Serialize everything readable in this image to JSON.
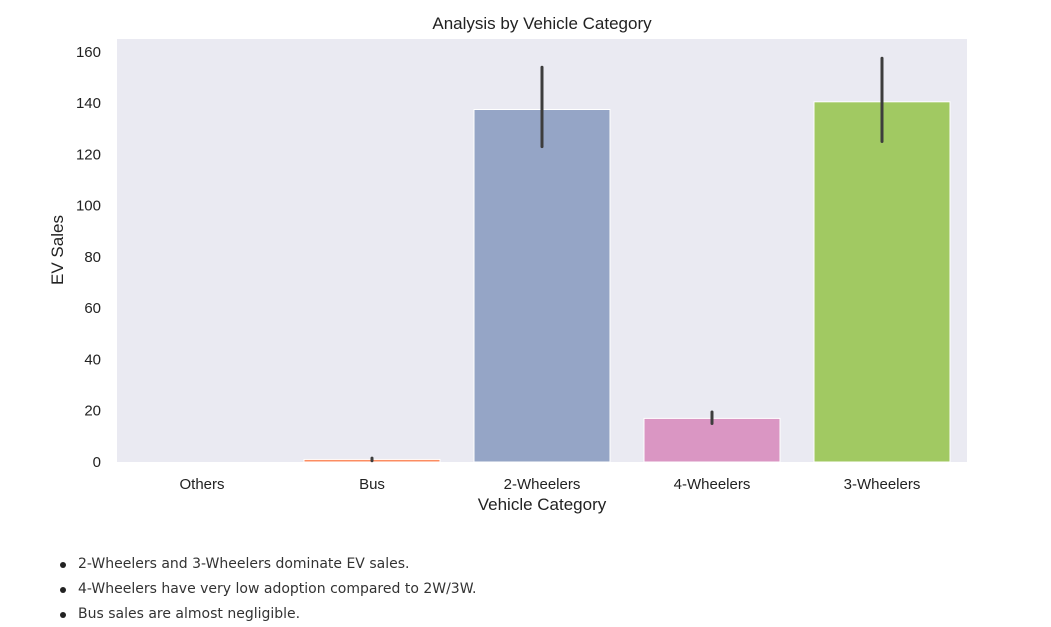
{
  "chart_data": {
    "type": "bar",
    "title": "Analysis by Vehicle Category",
    "xlabel": "Vehicle Category",
    "ylabel": "EV Sales",
    "categories": [
      "Others",
      "Bus",
      "2-Wheelers",
      "4-Wheelers",
      "3-Wheelers"
    ],
    "values": [
      0,
      1,
      137.5,
      17,
      140.5
    ],
    "error_bars": [
      [
        0,
        0
      ],
      [
        0.5,
        1.5
      ],
      [
        123,
        154
      ],
      [
        15,
        19.5
      ],
      [
        125,
        157.5
      ]
    ],
    "colors": [
      "#66c2a5",
      "#fc8d62",
      "#95a5c6",
      "#da96c3",
      "#a1c962"
    ],
    "ylim": [
      0,
      165
    ],
    "yticks": [
      0,
      20,
      40,
      60,
      80,
      100,
      120,
      140,
      160
    ],
    "grid": false,
    "background": "#eaeaf2"
  },
  "notes": [
    "2-Wheelers and 3-Wheelers dominate EV sales.",
    "4-Wheelers have very low adoption compared to 2W/3W.",
    "Bus sales are almost negligible."
  ]
}
